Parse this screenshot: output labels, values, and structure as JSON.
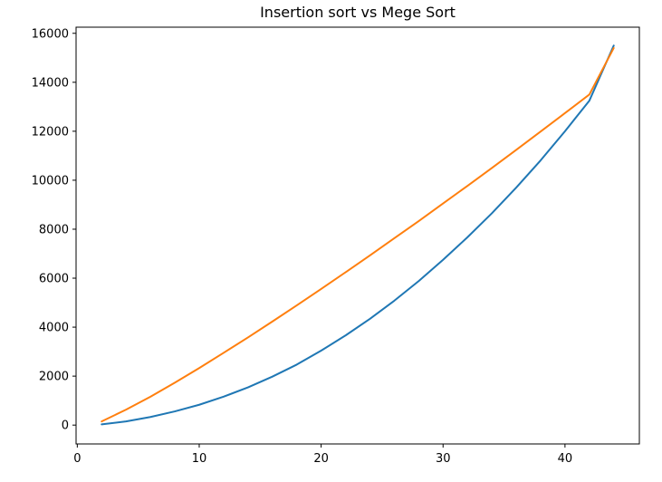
{
  "chart_data": {
    "type": "line",
    "title": "Insertion sort vs Mege Sort",
    "xlabel": "",
    "ylabel": "",
    "xlim": [
      -0.1,
      46.1
    ],
    "ylim": [
      -770,
      16250
    ],
    "xticks": [
      0,
      10,
      20,
      30,
      40
    ],
    "yticks": [
      0,
      2000,
      4000,
      6000,
      8000,
      10000,
      12000,
      14000,
      16000
    ],
    "grid": false,
    "legend": "none",
    "series": [
      {
        "color": "#1f77b4",
        "x": [
          2,
          4,
          6,
          8,
          10,
          12,
          14,
          16,
          18,
          20,
          22,
          24,
          26,
          28,
          30,
          32,
          34,
          36,
          38,
          40,
          42,
          44
        ],
        "values": [
          30,
          150,
          330,
          560,
          830,
          1160,
          1540,
          1980,
          2470,
          3040,
          3660,
          4340,
          5080,
          5880,
          6750,
          7670,
          8650,
          9700,
          10810,
          12000,
          13250,
          15500
        ]
      },
      {
        "color": "#ff7f0e",
        "x": [
          2,
          4,
          6,
          8,
          10,
          12,
          14,
          16,
          18,
          20,
          22,
          24,
          26,
          28,
          30,
          32,
          34,
          36,
          38,
          40,
          42,
          44
        ],
        "values": [
          150,
          630,
          1160,
          1730,
          2330,
          2950,
          3580,
          4230,
          4890,
          5560,
          6240,
          6930,
          7630,
          8330,
          9050,
          9770,
          10500,
          11240,
          11990,
          12740,
          13500,
          15400
        ]
      }
    ]
  }
}
